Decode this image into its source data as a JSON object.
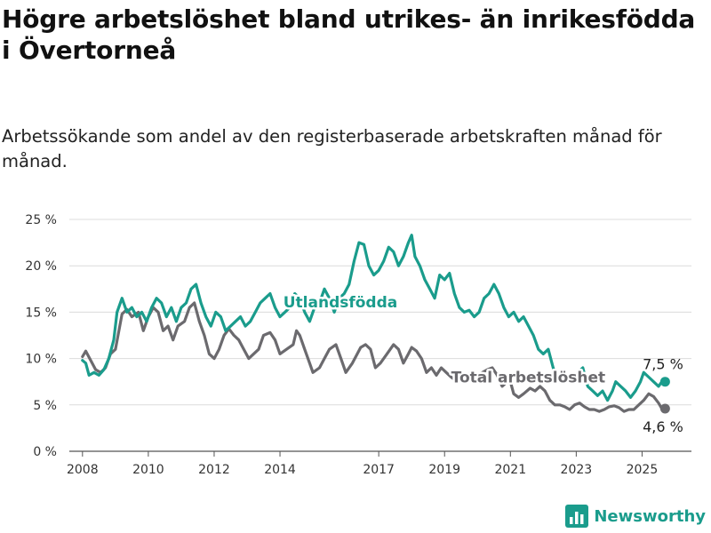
{
  "header": {
    "title": "Högre arbetslöshet bland utrikes- än inrikesfödda i Övertorneå",
    "subtitle": "Arbetssökande som andel av den registerbaserade arbetskraften månad för månad."
  },
  "brand": {
    "name": "Newsworthy",
    "icon": "chart-logo-icon",
    "color": "#1a9c8c"
  },
  "chart_data": {
    "type": "line",
    "ylim": [
      0,
      25
    ],
    "yticks": [
      0,
      5,
      10,
      15,
      20,
      25
    ],
    "ytick_labels": [
      "0 %",
      "5 %",
      "10 %",
      "15 %",
      "20 %",
      "25 %"
    ],
    "xlim": [
      2007.6,
      2026.5
    ],
    "xticks": [
      2008,
      2010,
      2012,
      2014,
      2017,
      2019,
      2021,
      2023,
      2025
    ],
    "xtick_labels": [
      "2008",
      "2010",
      "2012",
      "2014",
      "2017",
      "2019",
      "2021",
      "2023",
      "2025"
    ],
    "grid": true,
    "series": [
      {
        "name": "Total arbetslöshet",
        "color": "#6b6a6e",
        "end_label": "4,6 %",
        "points": [
          [
            2008.0,
            10.2
          ],
          [
            2008.1,
            10.8
          ],
          [
            2008.25,
            9.8
          ],
          [
            2008.4,
            8.8
          ],
          [
            2008.55,
            8.5
          ],
          [
            2008.7,
            9.0
          ],
          [
            2008.85,
            10.5
          ],
          [
            2009.0,
            11.0
          ],
          [
            2009.2,
            14.8
          ],
          [
            2009.35,
            15.3
          ],
          [
            2009.5,
            14.5
          ],
          [
            2009.7,
            15.0
          ],
          [
            2009.85,
            13.0
          ],
          [
            2010.0,
            14.5
          ],
          [
            2010.15,
            15.5
          ],
          [
            2010.3,
            15.0
          ],
          [
            2010.45,
            13.0
          ],
          [
            2010.6,
            13.5
          ],
          [
            2010.75,
            12.0
          ],
          [
            2010.9,
            13.5
          ],
          [
            2011.1,
            14.0
          ],
          [
            2011.25,
            15.5
          ],
          [
            2011.4,
            16.0
          ],
          [
            2011.55,
            14.0
          ],
          [
            2011.7,
            12.5
          ],
          [
            2011.85,
            10.5
          ],
          [
            2012.0,
            10.0
          ],
          [
            2012.15,
            11.0
          ],
          [
            2012.3,
            12.5
          ],
          [
            2012.45,
            13.2
          ],
          [
            2012.6,
            12.5
          ],
          [
            2012.75,
            12.0
          ],
          [
            2012.9,
            11.0
          ],
          [
            2013.05,
            10.0
          ],
          [
            2013.2,
            10.5
          ],
          [
            2013.35,
            11.0
          ],
          [
            2013.5,
            12.5
          ],
          [
            2013.7,
            12.8
          ],
          [
            2013.85,
            12.0
          ],
          [
            2014.0,
            10.5
          ],
          [
            2014.2,
            11.0
          ],
          [
            2014.4,
            11.5
          ],
          [
            2014.5,
            13.0
          ],
          [
            2014.6,
            12.5
          ],
          [
            2014.75,
            11.0
          ],
          [
            2014.9,
            9.5
          ],
          [
            2015.0,
            8.5
          ],
          [
            2015.2,
            9.0
          ],
          [
            2015.35,
            10.0
          ],
          [
            2015.5,
            11.0
          ],
          [
            2015.7,
            11.5
          ],
          [
            2015.85,
            10.0
          ],
          [
            2016.0,
            8.5
          ],
          [
            2016.2,
            9.5
          ],
          [
            2016.45,
            11.2
          ],
          [
            2016.6,
            11.5
          ],
          [
            2016.75,
            11.0
          ],
          [
            2016.9,
            9.0
          ],
          [
            2017.05,
            9.5
          ],
          [
            2017.25,
            10.5
          ],
          [
            2017.45,
            11.5
          ],
          [
            2017.6,
            11.0
          ],
          [
            2017.75,
            9.5
          ],
          [
            2017.9,
            10.5
          ],
          [
            2018.0,
            11.2
          ],
          [
            2018.15,
            10.8
          ],
          [
            2018.3,
            10.0
          ],
          [
            2018.45,
            8.5
          ],
          [
            2018.6,
            9.0
          ],
          [
            2018.75,
            8.2
          ],
          [
            2018.9,
            9.0
          ],
          [
            2019.05,
            8.5
          ],
          [
            2019.2,
            8.0
          ],
          [
            2019.4,
            7.5
          ],
          [
            2019.6,
            8.0
          ],
          [
            2019.8,
            8.5
          ],
          [
            2019.95,
            8.0
          ],
          [
            2020.15,
            8.5
          ],
          [
            2020.3,
            8.8
          ],
          [
            2020.45,
            9.0
          ],
          [
            2020.6,
            8.2
          ],
          [
            2020.75,
            7.0
          ],
          [
            2020.9,
            7.5
          ],
          [
            2021.0,
            7.5
          ],
          [
            2021.1,
            6.2
          ],
          [
            2021.25,
            5.8
          ],
          [
            2021.4,
            6.2
          ],
          [
            2021.6,
            6.8
          ],
          [
            2021.75,
            6.5
          ],
          [
            2021.9,
            7.0
          ],
          [
            2022.05,
            6.5
          ],
          [
            2022.2,
            5.5
          ],
          [
            2022.35,
            5.0
          ],
          [
            2022.5,
            5.0
          ],
          [
            2022.65,
            4.8
          ],
          [
            2022.8,
            4.5
          ],
          [
            2022.95,
            5.0
          ],
          [
            2023.1,
            5.2
          ],
          [
            2023.25,
            4.8
          ],
          [
            2023.4,
            4.5
          ],
          [
            2023.55,
            4.5
          ],
          [
            2023.7,
            4.3
          ],
          [
            2023.85,
            4.5
          ],
          [
            2024.0,
            4.8
          ],
          [
            2024.15,
            4.9
          ],
          [
            2024.3,
            4.7
          ],
          [
            2024.45,
            4.3
          ],
          [
            2024.6,
            4.5
          ],
          [
            2024.75,
            4.5
          ],
          [
            2024.9,
            5.0
          ],
          [
            2025.05,
            5.5
          ],
          [
            2025.2,
            6.2
          ],
          [
            2025.35,
            5.9
          ],
          [
            2025.5,
            5.2
          ],
          [
            2025.6,
            4.6
          ],
          [
            2025.7,
            4.6
          ]
        ]
      },
      {
        "name": "Utlandsfödda",
        "color": "#1a9c8c",
        "end_label": "7,5 %",
        "points": [
          [
            2008.0,
            9.8
          ],
          [
            2008.1,
            9.5
          ],
          [
            2008.2,
            8.2
          ],
          [
            2008.35,
            8.5
          ],
          [
            2008.5,
            8.2
          ],
          [
            2008.65,
            8.8
          ],
          [
            2008.8,
            10.0
          ],
          [
            2008.95,
            12.0
          ],
          [
            2009.05,
            15.0
          ],
          [
            2009.2,
            16.5
          ],
          [
            2009.35,
            15.0
          ],
          [
            2009.5,
            15.5
          ],
          [
            2009.65,
            14.5
          ],
          [
            2009.8,
            15.0
          ],
          [
            2009.95,
            14.0
          ],
          [
            2010.1,
            15.5
          ],
          [
            2010.25,
            16.5
          ],
          [
            2010.4,
            16.0
          ],
          [
            2010.55,
            14.5
          ],
          [
            2010.7,
            15.5
          ],
          [
            2010.85,
            14.0
          ],
          [
            2011.0,
            15.5
          ],
          [
            2011.15,
            16.0
          ],
          [
            2011.3,
            17.5
          ],
          [
            2011.45,
            18.0
          ],
          [
            2011.6,
            16.0
          ],
          [
            2011.75,
            14.5
          ],
          [
            2011.9,
            13.5
          ],
          [
            2012.05,
            15.0
          ],
          [
            2012.2,
            14.5
          ],
          [
            2012.35,
            13.0
          ],
          [
            2012.5,
            13.5
          ],
          [
            2012.65,
            14.0
          ],
          [
            2012.8,
            14.5
          ],
          [
            2012.95,
            13.5
          ],
          [
            2013.1,
            14.0
          ],
          [
            2013.25,
            15.0
          ],
          [
            2013.4,
            16.0
          ],
          [
            2013.55,
            16.5
          ],
          [
            2013.7,
            17.0
          ],
          [
            2013.85,
            15.5
          ],
          [
            2014.0,
            14.5
          ],
          [
            2014.15,
            15.0
          ],
          [
            2014.3,
            15.5
          ],
          [
            2014.45,
            17.0
          ],
          [
            2014.6,
            16.5
          ],
          [
            2014.75,
            15.0
          ],
          [
            2014.9,
            14.0
          ],
          [
            2015.05,
            15.5
          ],
          [
            2015.2,
            16.0
          ],
          [
            2015.35,
            17.5
          ],
          [
            2015.5,
            16.5
          ],
          [
            2015.65,
            15.0
          ],
          [
            2015.8,
            16.5
          ],
          [
            2015.95,
            17.0
          ],
          [
            2016.1,
            18.0
          ],
          [
            2016.25,
            20.5
          ],
          [
            2016.4,
            22.5
          ],
          [
            2016.55,
            22.3
          ],
          [
            2016.7,
            20.0
          ],
          [
            2016.85,
            19.0
          ],
          [
            2017.0,
            19.5
          ],
          [
            2017.15,
            20.5
          ],
          [
            2017.3,
            22.0
          ],
          [
            2017.45,
            21.5
          ],
          [
            2017.6,
            20.0
          ],
          [
            2017.75,
            21.0
          ],
          [
            2017.9,
            22.5
          ],
          [
            2018.0,
            23.3
          ],
          [
            2018.1,
            21.0
          ],
          [
            2018.25,
            20.0
          ],
          [
            2018.4,
            18.5
          ],
          [
            2018.55,
            17.5
          ],
          [
            2018.7,
            16.5
          ],
          [
            2018.85,
            19.0
          ],
          [
            2019.0,
            18.5
          ],
          [
            2019.15,
            19.2
          ],
          [
            2019.3,
            17.0
          ],
          [
            2019.45,
            15.5
          ],
          [
            2019.6,
            15.0
          ],
          [
            2019.75,
            15.2
          ],
          [
            2019.9,
            14.5
          ],
          [
            2020.05,
            15.0
          ],
          [
            2020.2,
            16.5
          ],
          [
            2020.35,
            17.0
          ],
          [
            2020.5,
            18.0
          ],
          [
            2020.65,
            17.0
          ],
          [
            2020.8,
            15.5
          ],
          [
            2020.95,
            14.5
          ],
          [
            2021.1,
            15.0
          ],
          [
            2021.25,
            14.0
          ],
          [
            2021.4,
            14.5
          ],
          [
            2021.55,
            13.5
          ],
          [
            2021.7,
            12.5
          ],
          [
            2021.85,
            11.0
          ],
          [
            2022.0,
            10.5
          ],
          [
            2022.15,
            11.0
          ],
          [
            2022.3,
            9.0
          ],
          [
            2022.45,
            7.5
          ],
          [
            2022.6,
            7.5
          ],
          [
            2022.75,
            8.0
          ],
          [
            2022.9,
            7.5
          ],
          [
            2023.05,
            8.5
          ],
          [
            2023.2,
            9.0
          ],
          [
            2023.35,
            7.0
          ],
          [
            2023.5,
            6.5
          ],
          [
            2023.65,
            6.0
          ],
          [
            2023.8,
            6.5
          ],
          [
            2023.95,
            5.5
          ],
          [
            2024.1,
            6.5
          ],
          [
            2024.2,
            7.5
          ],
          [
            2024.35,
            7.0
          ],
          [
            2024.5,
            6.5
          ],
          [
            2024.65,
            5.8
          ],
          [
            2024.8,
            6.5
          ],
          [
            2024.95,
            7.5
          ],
          [
            2025.05,
            8.5
          ],
          [
            2025.2,
            8.0
          ],
          [
            2025.35,
            7.5
          ],
          [
            2025.5,
            7.0
          ],
          [
            2025.6,
            7.5
          ],
          [
            2025.7,
            7.5
          ]
        ]
      }
    ],
    "annotations": [
      {
        "text": "Utlandsfödda",
        "x": 2014.1,
        "y": 15.5,
        "series": 1
      },
      {
        "text": "Total arbetslöshet",
        "x": 2019.2,
        "y": 7.4,
        "series": 0
      }
    ]
  }
}
